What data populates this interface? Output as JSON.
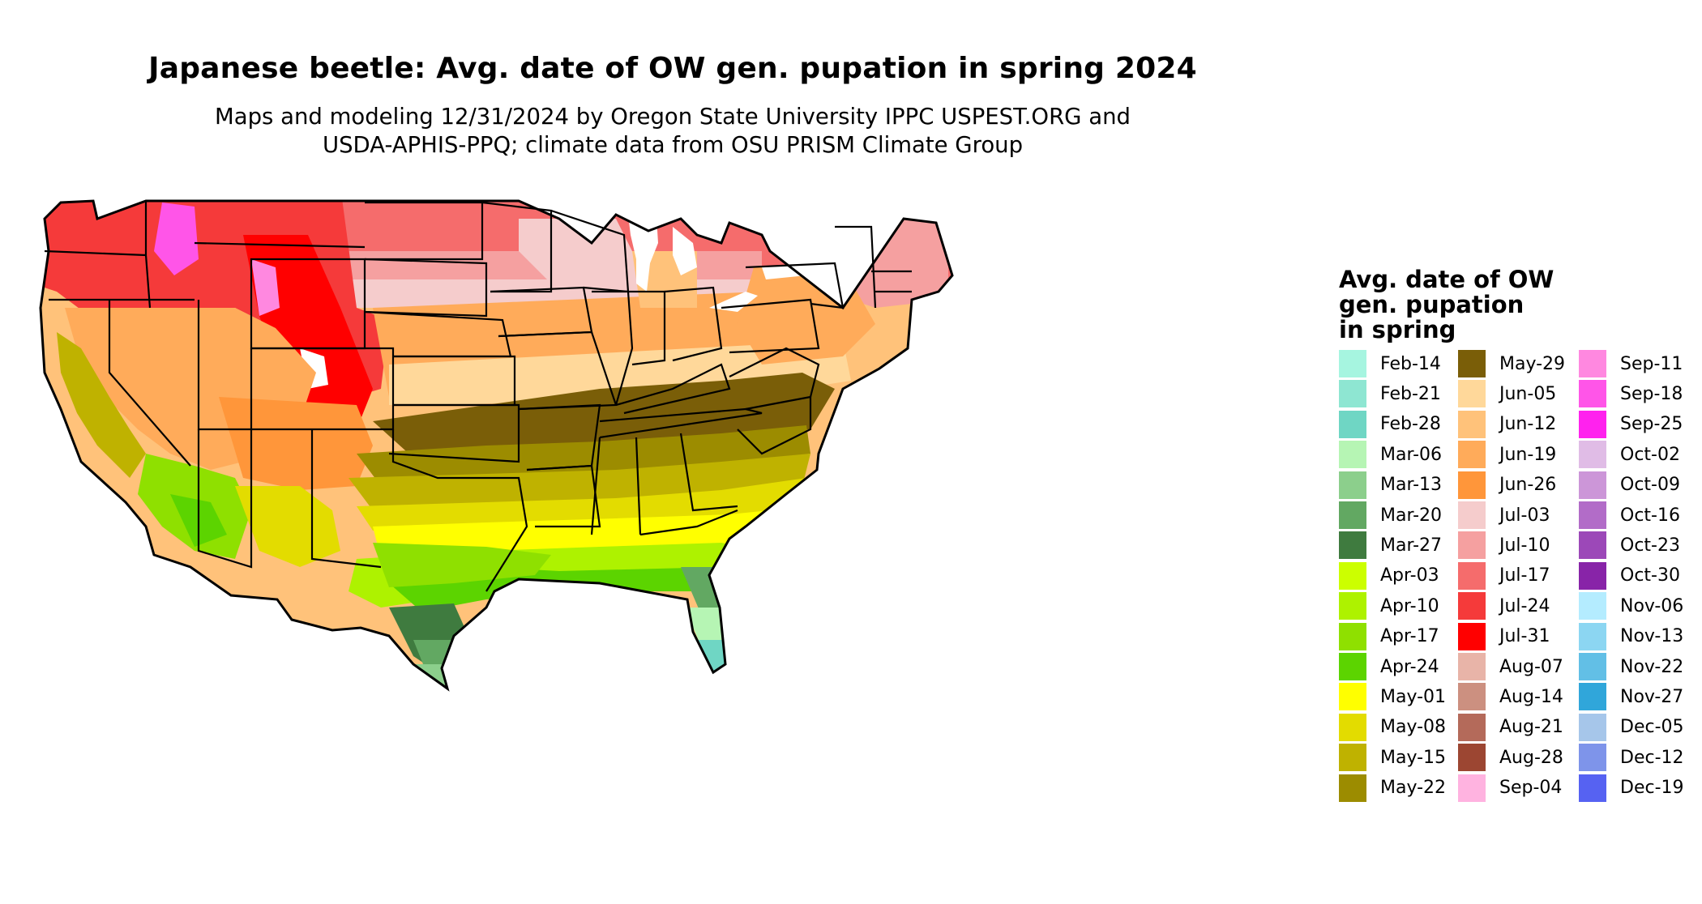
{
  "title": "Japanese beetle: Avg. date of OW gen. pupation in spring 2024",
  "subtitle_lines": [
    "Maps and modeling 12/31/2024 by Oregon State University IPPC USPEST.ORG and",
    "USDA-APHIS-PPQ; climate data from OSU PRISM Climate Group"
  ],
  "legend": {
    "title_lines": [
      "Avg. date of OW",
      "gen. pupation",
      "in spring"
    ],
    "items": [
      {
        "label": "Feb-14",
        "color": "#a6f5e0"
      },
      {
        "label": "Feb-21",
        "color": "#8ee6d2"
      },
      {
        "label": "Feb-28",
        "color": "#6fd6c4"
      },
      {
        "label": "Mar-06",
        "color": "#b6f5b4"
      },
      {
        "label": "Mar-13",
        "color": "#8ccf8c"
      },
      {
        "label": "Mar-20",
        "color": "#62a862"
      },
      {
        "label": "Mar-27",
        "color": "#3f7b3f"
      },
      {
        "label": "Apr-03",
        "color": "#ccff00"
      },
      {
        "label": "Apr-10",
        "color": "#aef200"
      },
      {
        "label": "Apr-17",
        "color": "#8fe000"
      },
      {
        "label": "Apr-24",
        "color": "#5cd400"
      },
      {
        "label": "May-01",
        "color": "#ffff00"
      },
      {
        "label": "May-08",
        "color": "#e3dc00"
      },
      {
        "label": "May-15",
        "color": "#bfb200"
      },
      {
        "label": "May-22",
        "color": "#9c8c00"
      },
      {
        "label": "May-29",
        "color": "#7a5e08"
      },
      {
        "label": "Jun-05",
        "color": "#ffd89a"
      },
      {
        "label": "Jun-12",
        "color": "#ffc27a"
      },
      {
        "label": "Jun-19",
        "color": "#ffab5a"
      },
      {
        "label": "Jun-26",
        "color": "#ff963a"
      },
      {
        "label": "Jul-03",
        "color": "#f5cccc"
      },
      {
        "label": "Jul-10",
        "color": "#f5a0a0"
      },
      {
        "label": "Jul-17",
        "color": "#f56c6c"
      },
      {
        "label": "Jul-24",
        "color": "#f53a3a"
      },
      {
        "label": "Jul-31",
        "color": "#ff0000"
      },
      {
        "label": "Aug-07",
        "color": "#e8b4a8"
      },
      {
        "label": "Aug-14",
        "color": "#cc9080"
      },
      {
        "label": "Aug-21",
        "color": "#b46a5a"
      },
      {
        "label": "Aug-28",
        "color": "#9c4632"
      },
      {
        "label": "Sep-04",
        "color": "#ffb3e0"
      },
      {
        "label": "Sep-11",
        "color": "#ff88e0"
      },
      {
        "label": "Sep-18",
        "color": "#ff55e8"
      },
      {
        "label": "Sep-25",
        "color": "#ff22ee"
      },
      {
        "label": "Oct-02",
        "color": "#e0bce6"
      },
      {
        "label": "Oct-09",
        "color": "#cc96d8"
      },
      {
        "label": "Oct-16",
        "color": "#b26cc8"
      },
      {
        "label": "Oct-23",
        "color": "#9c48b8"
      },
      {
        "label": "Oct-30",
        "color": "#8824a8"
      },
      {
        "label": "Nov-06",
        "color": "#b4ecff"
      },
      {
        "label": "Nov-13",
        "color": "#8cd6f2"
      },
      {
        "label": "Nov-22",
        "color": "#62bfe6"
      },
      {
        "label": "Nov-27",
        "color": "#30a6da"
      },
      {
        "label": "Dec-05",
        "color": "#a6c6ea"
      },
      {
        "label": "Dec-12",
        "color": "#7e94ea"
      },
      {
        "label": "Dec-19",
        "color": "#5662f2"
      }
    ]
  }
}
